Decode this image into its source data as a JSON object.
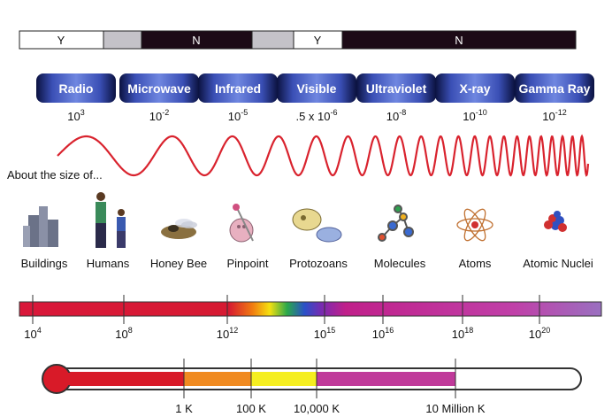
{
  "atmosphere_bar": [
    "Y",
    "N",
    "Y",
    "N"
  ],
  "bands": [
    {
      "name": "Radio",
      "wavelength": {
        "base": "10",
        "exp": "3"
      }
    },
    {
      "name": "Microwave",
      "wavelength": {
        "base": "10",
        "exp": "-2"
      }
    },
    {
      "name": "Infrared",
      "wavelength": {
        "base": "10",
        "exp": "-5"
      }
    },
    {
      "name": "Visible",
      "wavelength": {
        "base": ".5 x 10",
        "exp": "-6"
      }
    },
    {
      "name": "Ultraviolet",
      "wavelength": {
        "base": "10",
        "exp": "-8"
      }
    },
    {
      "name": "X-ray",
      "wavelength": {
        "base": "10",
        "exp": "-10"
      }
    },
    {
      "name": "Gamma Ray",
      "wavelength": {
        "base": "10",
        "exp": "-12"
      }
    }
  ],
  "size_label": "About the size of...",
  "objects": [
    "Buildings",
    "Humans",
    "Honey Bee",
    "Pinpoint",
    "Protozoans",
    "Molecules",
    "Atoms",
    "Atomic Nuclei"
  ],
  "frequency_ticks": [
    {
      "base": "10",
      "exp": "4"
    },
    {
      "base": "10",
      "exp": "8"
    },
    {
      "base": "10",
      "exp": "12"
    },
    {
      "base": "10",
      "exp": "15"
    },
    {
      "base": "10",
      "exp": "16"
    },
    {
      "base": "10",
      "exp": "18"
    },
    {
      "base": "10",
      "exp": "20"
    }
  ],
  "temperature_ticks": [
    "1 K",
    "100 K",
    "10,000 K",
    "10 Million K"
  ]
}
